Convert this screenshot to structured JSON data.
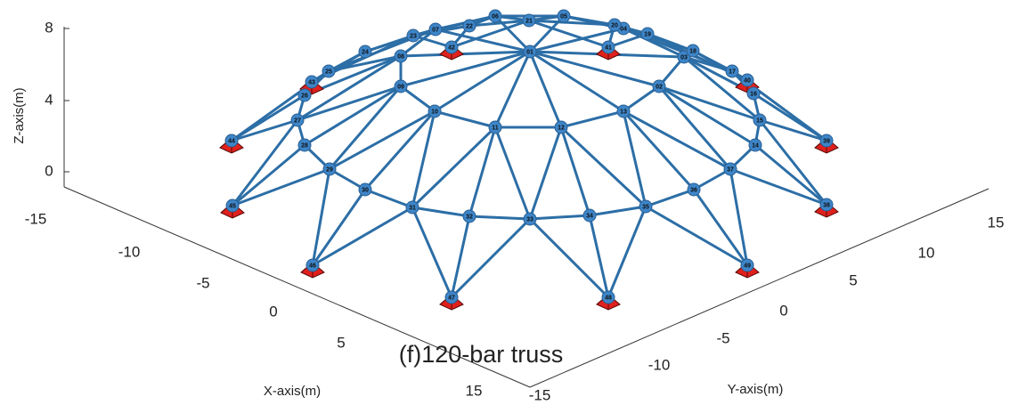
{
  "title": "(f)120-bar truss",
  "axes": {
    "z": {
      "label": "Z-axis(m)",
      "ticks": [
        8,
        4,
        0
      ]
    },
    "x": {
      "label": "X-axis(m)",
      "ticks": [
        -15,
        -10,
        -5,
        0,
        5,
        15
      ]
    },
    "y": {
      "label": "Y-axis(m)",
      "ticks": [
        -15,
        -10,
        -5,
        0,
        5,
        10,
        15
      ]
    }
  },
  "nodes": [
    "01",
    "02",
    "03",
    "04",
    "05",
    "06",
    "07",
    "08",
    "09",
    "10",
    "11",
    "12",
    "13",
    "14",
    "15",
    "16",
    "17",
    "18",
    "19",
    "20",
    "21",
    "22",
    "23",
    "24",
    "25",
    "26",
    "27",
    "28",
    "29",
    "30",
    "31",
    "32",
    "33",
    "34",
    "35",
    "36",
    "37",
    "38",
    "39",
    "40",
    "41",
    "42",
    "43",
    "44",
    "45",
    "46",
    "47",
    "48",
    "49"
  ]
}
